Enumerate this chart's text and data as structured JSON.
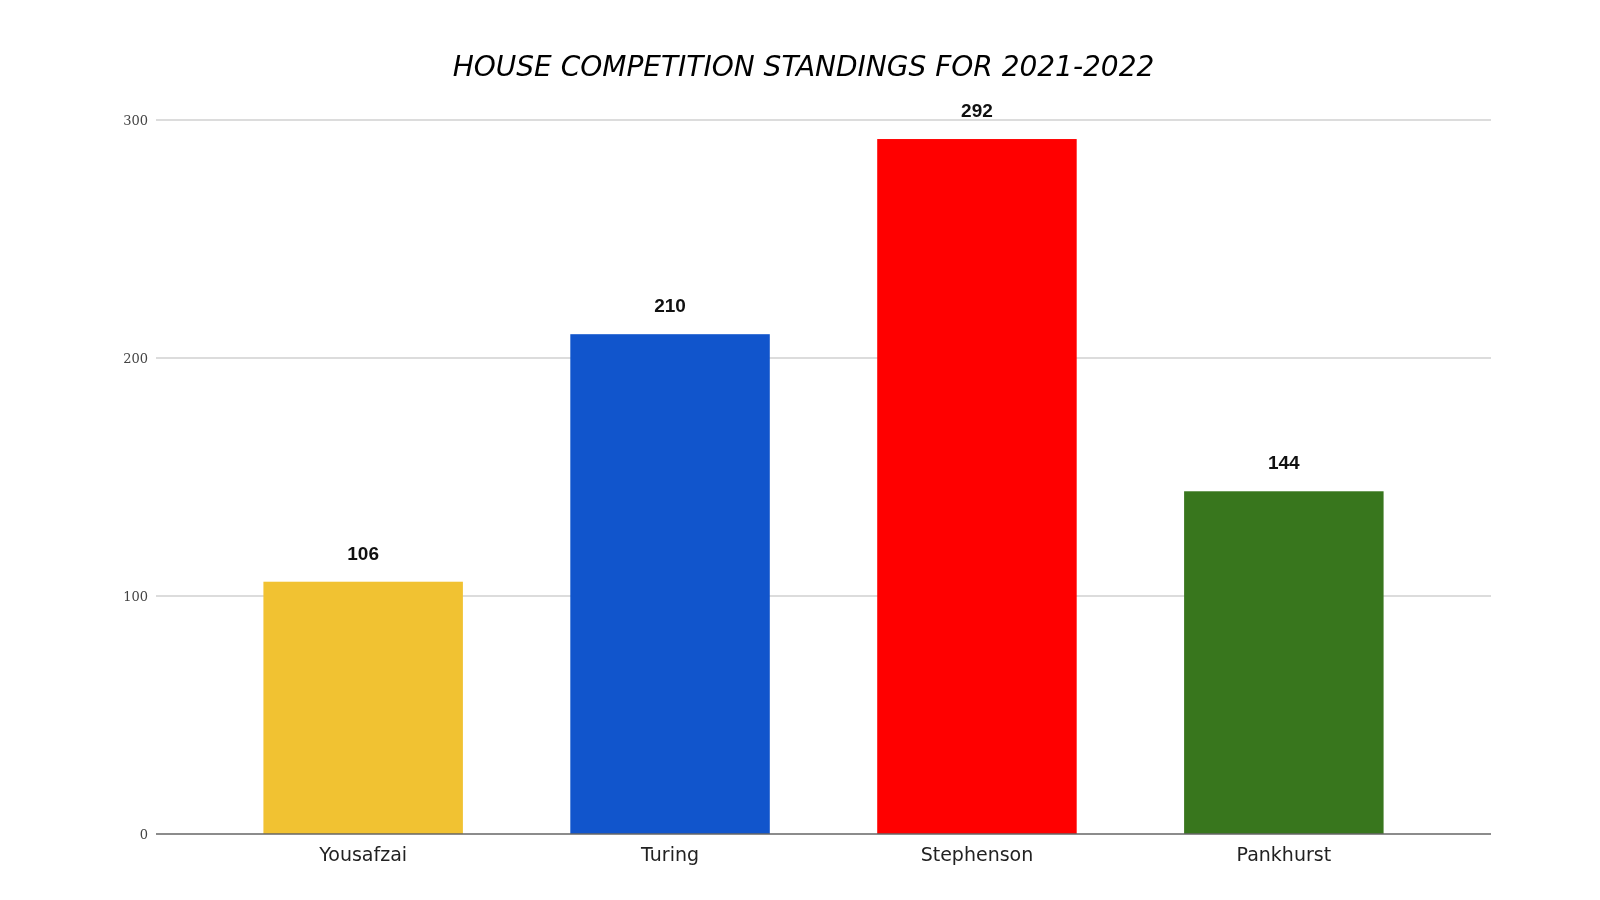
{
  "chart_data": {
    "type": "bar",
    "title": "HOUSE COMPETITION STANDINGS FOR 2021-2022",
    "categories": [
      "Yousafzai",
      "Turing",
      "Stephenson",
      "Pankhurst"
    ],
    "values": [
      106,
      210,
      292,
      144
    ],
    "colors": [
      "#f1c232",
      "#1155cc",
      "#ff0000",
      "#38761d"
    ],
    "ylim": [
      0,
      300
    ],
    "yticks": [
      0,
      100,
      200,
      300
    ],
    "grid": "y",
    "data_labels": true
  }
}
